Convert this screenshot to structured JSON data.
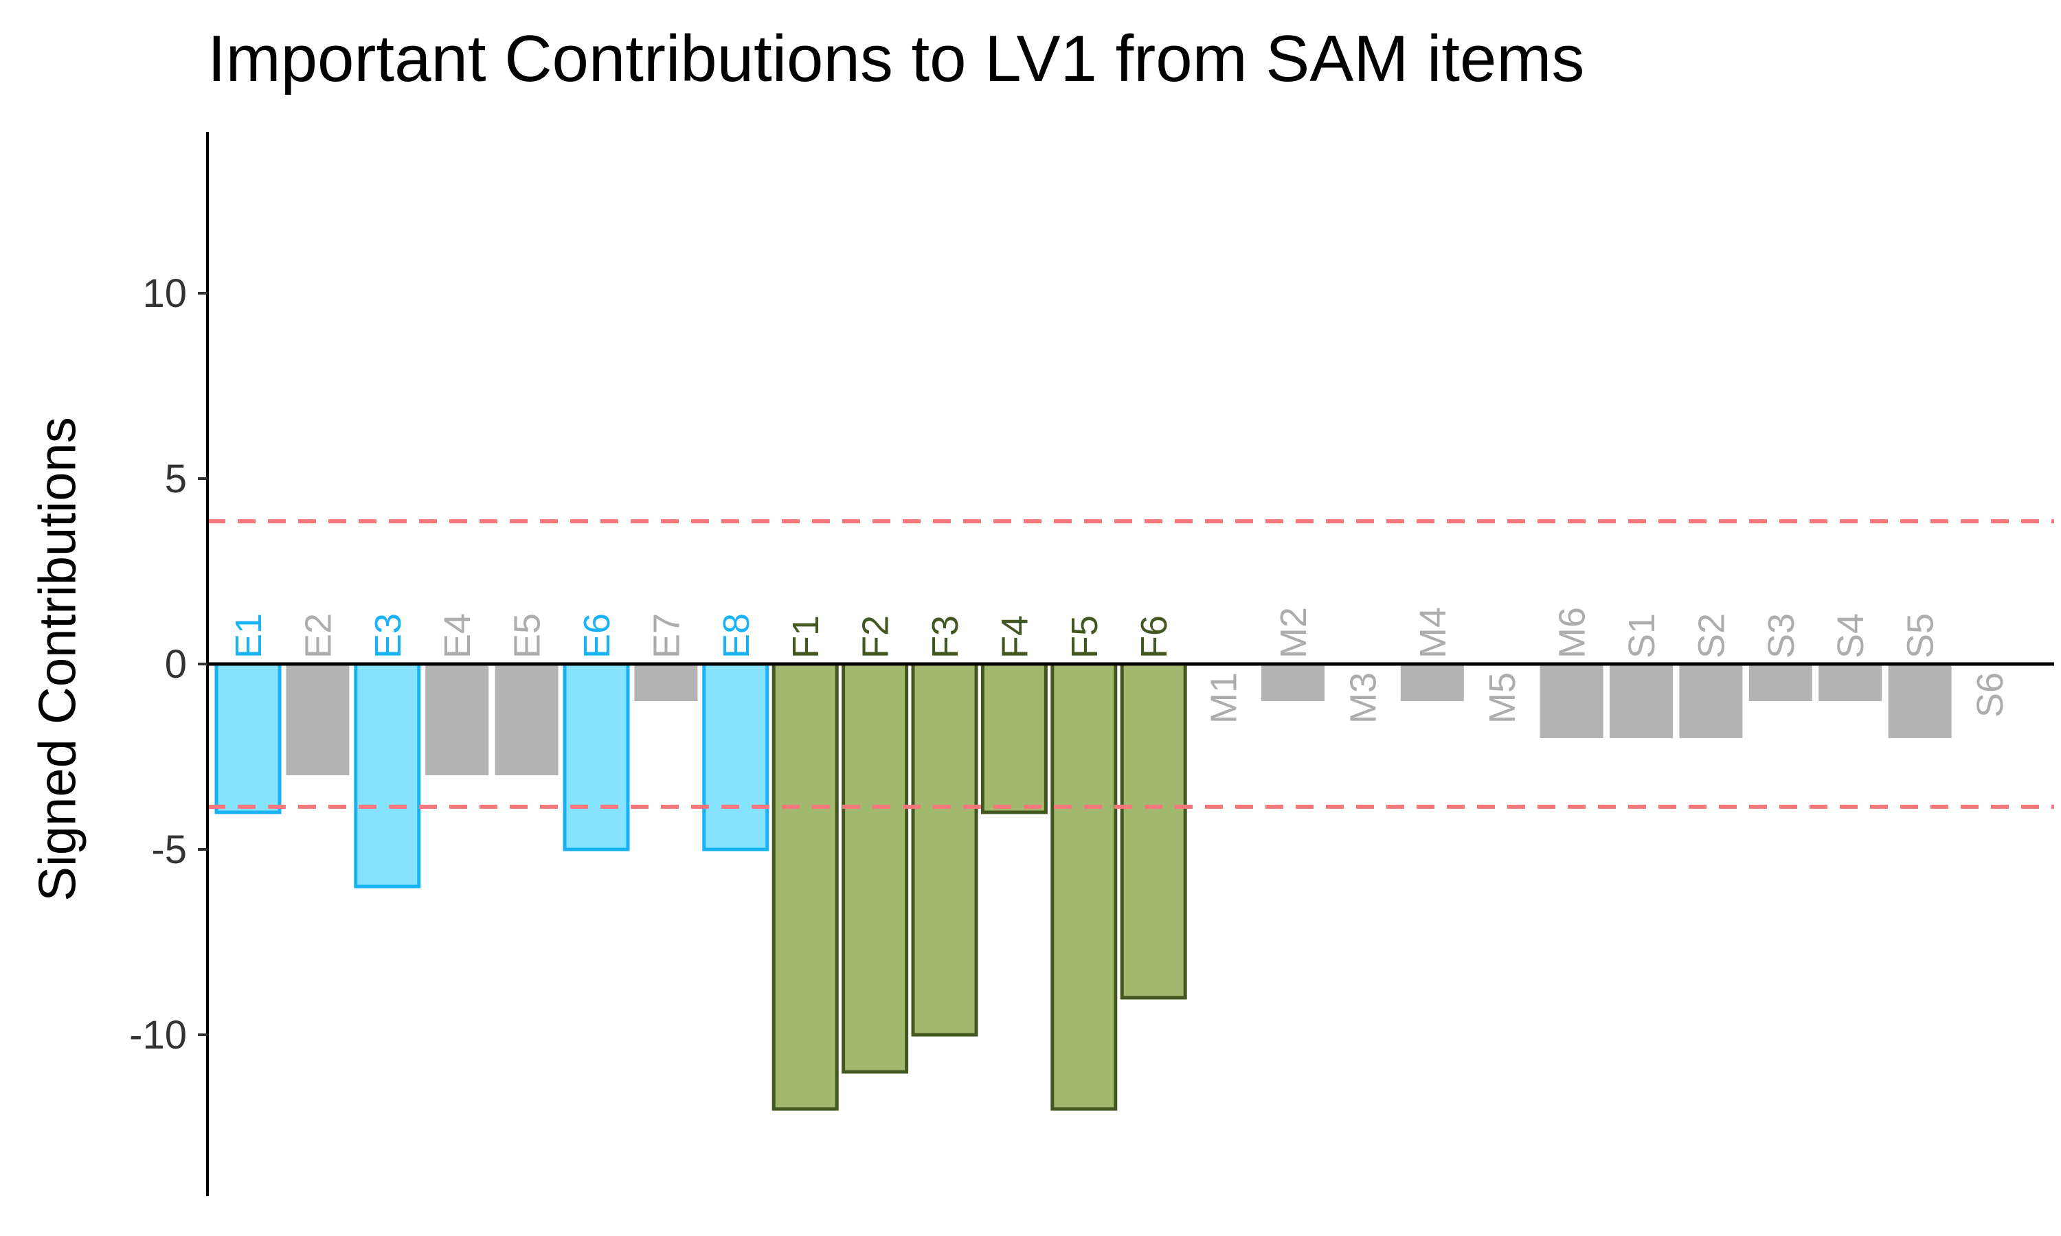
{
  "chart_data": {
    "type": "bar",
    "title": "Important Contributions to LV1 from SAM items",
    "xlabel": "",
    "ylabel": "Signed Contributions",
    "ylim": [
      -14.3,
      14.3
    ],
    "yticks": [
      10,
      5,
      0,
      -5,
      -10
    ],
    "threshold_lines": [
      3.85,
      -3.85
    ],
    "threshold_color": "#f8777c",
    "categories": [
      "E1",
      "E2",
      "E3",
      "E4",
      "E5",
      "E6",
      "E7",
      "E8",
      "F1",
      "F2",
      "F3",
      "F4",
      "F5",
      "F6",
      "M1",
      "M2",
      "M3",
      "M4",
      "M5",
      "M6",
      "S1",
      "S2",
      "S3",
      "S4",
      "S5",
      "S6"
    ],
    "values": [
      -4,
      -3,
      -6,
      -3,
      -3,
      -5,
      -1,
      -5,
      -12,
      -11,
      -10,
      -4,
      -12,
      -9,
      0,
      -1,
      0,
      -1,
      0,
      -2,
      -2,
      -2,
      -1,
      -1,
      -2,
      0
    ],
    "important": [
      true,
      false,
      true,
      false,
      false,
      true,
      false,
      true,
      true,
      true,
      true,
      true,
      true,
      true,
      false,
      false,
      false,
      false,
      false,
      false,
      false,
      false,
      false,
      false,
      false,
      false
    ],
    "colors": {
      "E_fill": "#85e3ff",
      "E_stroke": "#1ab2f5",
      "E_text": "#1ab2f5",
      "F_fill": "#a2b86f",
      "F_stroke": "#435720",
      "F_text": "#435720",
      "neutral_fill": "#b3b3b3",
      "neutral_text": "#adadad"
    }
  }
}
